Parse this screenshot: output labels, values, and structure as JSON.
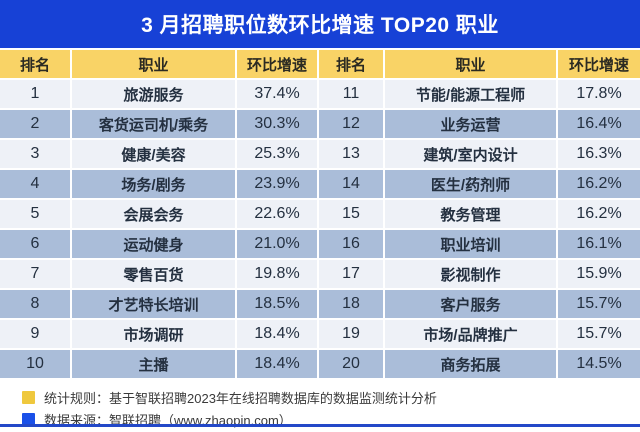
{
  "chart_data": {
    "type": "table",
    "title": "3 月招聘职位数环比增速 TOP20 职业",
    "columns": [
      "排名",
      "职业",
      "环比增速"
    ],
    "layout": "two-column ranking table: ranks 1-10 in left half, ranks 11-20 in right half; alternating light/dark row shading",
    "rows": [
      {
        "rank": 1,
        "job": "旅游服务",
        "rate_pct": 37.4
      },
      {
        "rank": 2,
        "job": "客货运司机/乘务",
        "rate_pct": 30.3
      },
      {
        "rank": 3,
        "job": "健康/美容",
        "rate_pct": 25.3
      },
      {
        "rank": 4,
        "job": "场务/剧务",
        "rate_pct": 23.9
      },
      {
        "rank": 5,
        "job": "会展会务",
        "rate_pct": 22.6
      },
      {
        "rank": 6,
        "job": "运动健身",
        "rate_pct": 21.0
      },
      {
        "rank": 7,
        "job": "零售百货",
        "rate_pct": 19.8
      },
      {
        "rank": 8,
        "job": "才艺特长培训",
        "rate_pct": 18.5
      },
      {
        "rank": 9,
        "job": "市场调研",
        "rate_pct": 18.4
      },
      {
        "rank": 10,
        "job": "主播",
        "rate_pct": 18.4
      },
      {
        "rank": 11,
        "job": "节能/能源工程师",
        "rate_pct": 17.8
      },
      {
        "rank": 12,
        "job": "业务运营",
        "rate_pct": 16.4
      },
      {
        "rank": 13,
        "job": "建筑/室内设计",
        "rate_pct": 16.3
      },
      {
        "rank": 14,
        "job": "医生/药剂师",
        "rate_pct": 16.2
      },
      {
        "rank": 15,
        "job": "教务管理",
        "rate_pct": 16.2
      },
      {
        "rank": 16,
        "job": "职业培训",
        "rate_pct": 16.1
      },
      {
        "rank": 17,
        "job": "影视制作",
        "rate_pct": 15.9
      },
      {
        "rank": 18,
        "job": "客户服务",
        "rate_pct": 15.7
      },
      {
        "rank": 19,
        "job": "市场/品牌推广",
        "rate_pct": 15.7
      },
      {
        "rank": 20,
        "job": "商务拓展",
        "rate_pct": 14.5
      }
    ]
  },
  "footer": {
    "stat_rule": "统计规则：基于智联招聘2023年在线招聘数据库的数据监测统计分析",
    "data_source": "数据来源：智联招聘（www.zhaopin.com）"
  },
  "colors": {
    "title_bar_bg": "#1741d6",
    "title_text": "#ffffff",
    "header_row_bg": "#f9d366",
    "row_light_bg": "#eef1f7",
    "row_dark_bg": "#aabdd9",
    "row_text": "#243040",
    "legend_yellow_swatch": "#efc83d",
    "legend_blue_swatch": "#1a50e8",
    "bottom_strip": "#2348c8"
  }
}
